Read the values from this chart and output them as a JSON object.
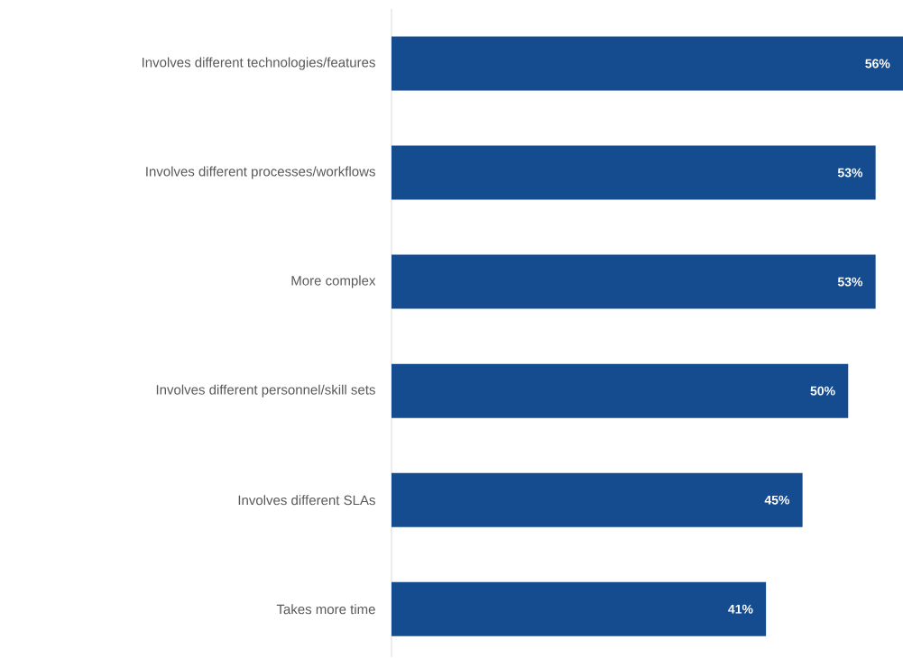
{
  "chart_data": {
    "type": "bar",
    "orientation": "horizontal",
    "categories": [
      "Involves different technologies/features",
      "Involves different processes/workflows",
      "More complex",
      "Involves different personnel/skill sets",
      "Involves different SLAs",
      "Takes more time"
    ],
    "values": [
      56,
      53,
      53,
      50,
      45,
      41
    ],
    "value_labels": [
      "56%",
      "53%",
      "53%",
      "50%",
      "45%",
      "41%"
    ],
    "color": "#154c8f"
  }
}
